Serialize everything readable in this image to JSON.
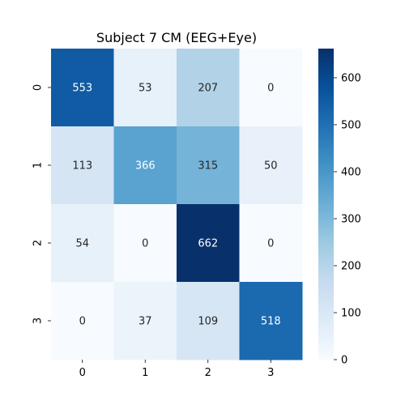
{
  "chart_data": {
    "type": "heatmap",
    "title": "Subject 7 CM (EEG+Eye)",
    "xlabel": "",
    "ylabel": "",
    "x_categories": [
      "0",
      "1",
      "2",
      "3"
    ],
    "y_categories": [
      "0",
      "1",
      "2",
      "3"
    ],
    "values": [
      [
        553,
        53,
        207,
        0
      ],
      [
        113,
        366,
        315,
        50
      ],
      [
        54,
        0,
        662,
        0
      ],
      [
        0,
        37,
        109,
        518
      ]
    ],
    "colormap": "Blues",
    "color_range": [
      0,
      662
    ],
    "colorbar_ticks": [
      0,
      100,
      200,
      300,
      400,
      500,
      600
    ],
    "legend": "colorbar-right",
    "grid": false
  }
}
